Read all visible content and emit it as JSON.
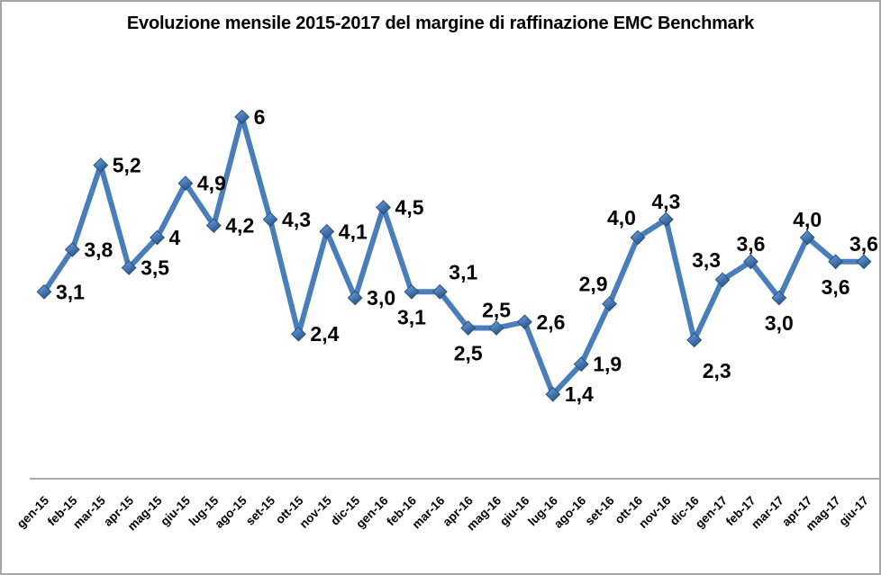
{
  "title": "Evoluzione mensile 2015-2017 del margine di raffinazione EMC Benchmark",
  "chart_data": {
    "type": "line",
    "title": "Evoluzione mensile 2015-2017 del margine di raffinazione EMC Benchmark",
    "xlabel": "",
    "ylabel": "",
    "ylim": [
      0,
      7
    ],
    "grid": false,
    "legend": "none",
    "decimal_format": "italian-comma",
    "categories": [
      "gen-15",
      "feb-15",
      "mar-15",
      "apr-15",
      "mag-15",
      "giu-15",
      "lug-15",
      "ago-15",
      "set-15",
      "ott-15",
      "nov-15",
      "dic-15",
      "gen-16",
      "feb-16",
      "mar-16",
      "apr-16",
      "mag-16",
      "giu-16",
      "lug-16",
      "ago-16",
      "set-16",
      "ott-16",
      "nov-16",
      "dic-16",
      "gen-17",
      "feb-17",
      "mar-17",
      "apr-17",
      "mag-17",
      "giu-17"
    ],
    "values": [
      3.1,
      3.8,
      5.2,
      3.5,
      4,
      4.9,
      4.2,
      6,
      4.3,
      2.4,
      4.1,
      3.0,
      4.5,
      3.1,
      3.1,
      2.5,
      2.5,
      2.6,
      1.4,
      1.9,
      2.9,
      4.0,
      4.3,
      2.3,
      3.3,
      3.6,
      3.0,
      4.0,
      3.6,
      3.6
    ],
    "data_labels": [
      "3,1",
      "3,8",
      "5,2",
      "3,5",
      "4",
      "4,9",
      "4,2",
      "6",
      "4,3",
      "2,4",
      "4,1",
      "3,0",
      "4,5",
      "3,1",
      "3,1",
      "2,5",
      "2,5",
      "2,6",
      "1,4",
      "1,9",
      "2,9",
      "4,0",
      "4,3",
      "2,3",
      "3,3",
      "3,6",
      "3,0",
      "4,0",
      "3,6",
      "3,6"
    ],
    "label_positions": [
      "right",
      "right",
      "right",
      "right",
      "right",
      "right",
      "right",
      "right",
      "right",
      "right",
      "right",
      "right",
      "right",
      "below",
      "above-right",
      "below",
      "above",
      "right",
      "right",
      "right",
      "above-left",
      "above-left",
      "above",
      "below-right",
      "above-left",
      "above",
      "below",
      "above",
      "below",
      "above"
    ],
    "colors": {
      "line": "#4A7EBB",
      "marker_light": "#7FA9DC",
      "marker_mid": "#4F81BD",
      "marker_dark": "#2B5688",
      "marker_border": "#264F7D",
      "axis_line": "#8E8E8E",
      "text": "#000000",
      "frame_border": "#A6A6A6"
    }
  }
}
